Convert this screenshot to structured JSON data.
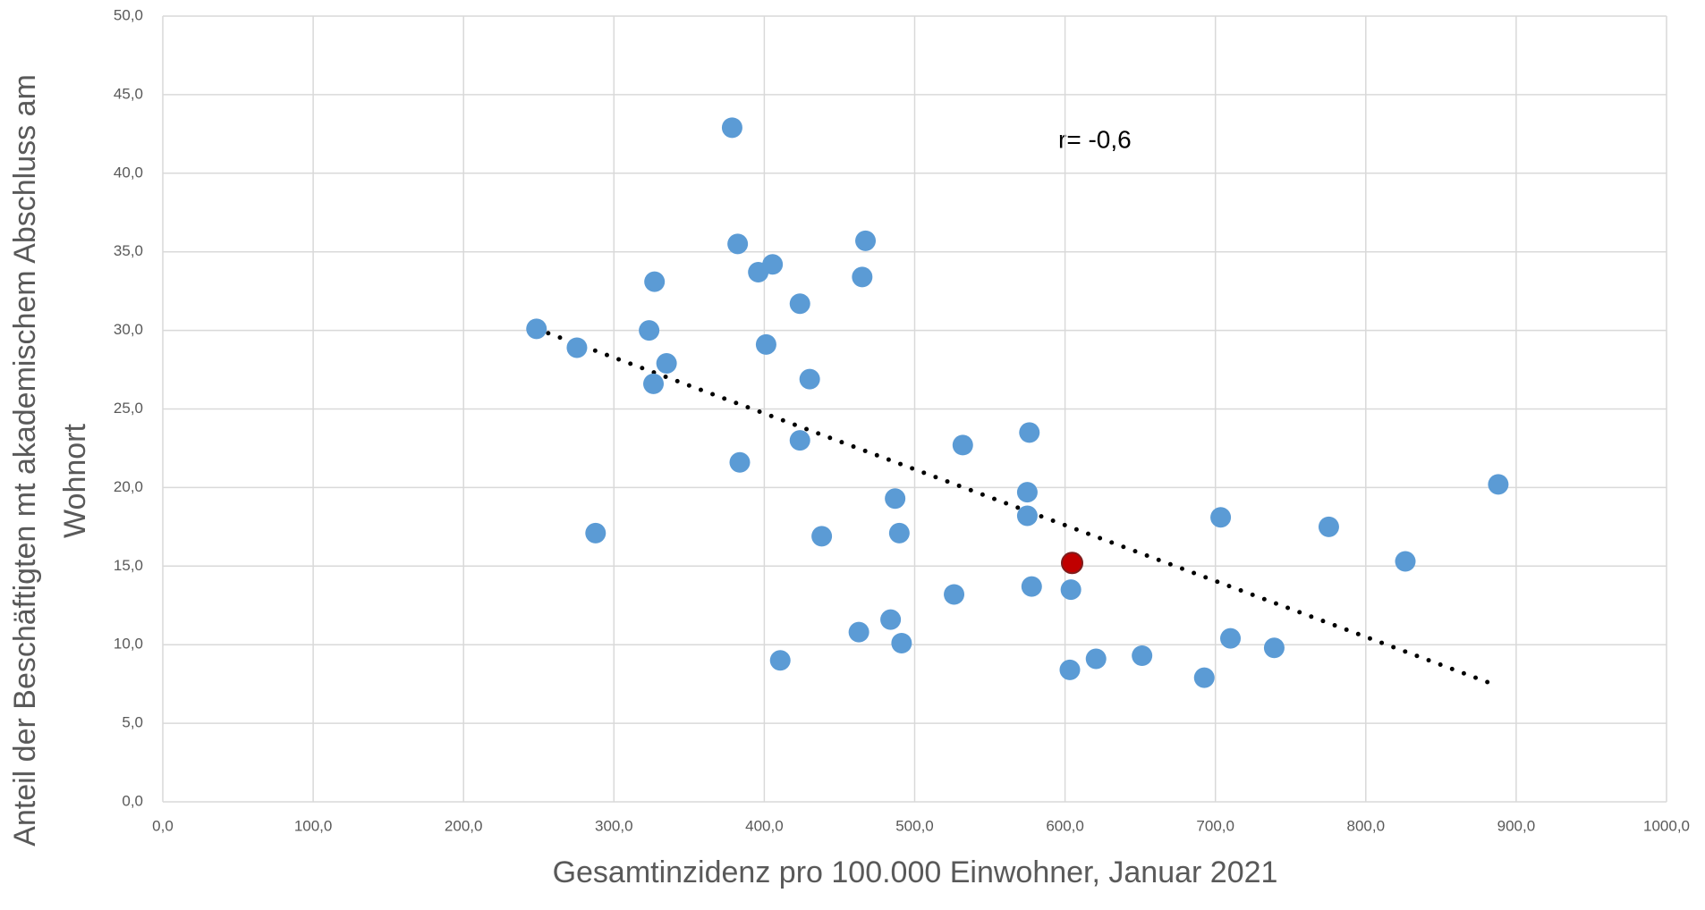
{
  "chart_data": {
    "type": "scatter",
    "xlabel": "Gesamtinzidenz pro 100.000 Einwohner, Januar 2021",
    "ylabel": [
      "Anteil der Beschäftigten mt akademischem Abschluss am",
      "Wohnort"
    ],
    "annotation": "r= -0,6",
    "series": [
      {
        "color": "#5b9bd5",
        "x": [
          248.5,
          275.4,
          287.8,
          323.4,
          327,
          326.3,
          335,
          378.6,
          382.3,
          383.7,
          396,
          405.5,
          401.2,
          410.6,
          423.7,
          423.7,
          430.2,
          438.2,
          462.9,
          465.1,
          467.3,
          484,
          487,
          489.8,
          491.3,
          526.2,
          532,
          574.9,
          574.9,
          576.3,
          577.8,
          603.2,
          603.9,
          620.6,
          651.2,
          692.6,
          703.5,
          710,
          739.1,
          775.4,
          826.3,
          888.1
        ],
        "values": [
          30.1,
          28.9,
          17.1,
          30.0,
          33.1,
          26.6,
          27.9,
          42.9,
          35.5,
          21.6,
          33.7,
          34.2,
          29.1,
          9.0,
          31.7,
          23.0,
          26.9,
          16.9,
          10.8,
          33.4,
          35.7,
          11.6,
          19.3,
          17.1,
          10.1,
          13.2,
          22.7,
          19.7,
          18.2,
          23.5,
          13.7,
          8.4,
          13.5,
          9.1,
          9.3,
          7.9,
          18.1,
          10.4,
          9.8,
          17.5,
          15.3,
          20.2
        ]
      },
      {
        "color": "#c00000",
        "x": [
          604.7
        ],
        "values": [
          15.2
        ]
      }
    ],
    "trendline": {
      "color": "#000000",
      "x": [
        248.5,
        881.5
      ],
      "values": [
        30.1,
        7.6
      ]
    },
    "xlim": [
      0,
      1000
    ],
    "xticks": [
      {
        "value": 0,
        "label": "0,0"
      },
      {
        "value": 100,
        "label": "100,0"
      },
      {
        "value": 200,
        "label": "200,0"
      },
      {
        "value": 300,
        "label": "300,0"
      },
      {
        "value": 400,
        "label": "400,0"
      },
      {
        "value": 500,
        "label": "500,0"
      },
      {
        "value": 600,
        "label": "600,0"
      },
      {
        "value": 700,
        "label": "700,0"
      },
      {
        "value": 800,
        "label": "800,0"
      },
      {
        "value": 900,
        "label": "900,0"
      },
      {
        "value": 1000,
        "label": "1000,0"
      }
    ],
    "ylim": [
      0,
      50
    ],
    "yticks": [
      {
        "value": 0,
        "label": "0,0"
      },
      {
        "value": 5,
        "label": "5,0"
      },
      {
        "value": 10,
        "label": "10,0"
      },
      {
        "value": 15,
        "label": "15,0"
      },
      {
        "value": 20,
        "label": "20,0"
      },
      {
        "value": 25,
        "label": "25,0"
      },
      {
        "value": 30,
        "label": "30,0"
      },
      {
        "value": 35,
        "label": "35,0"
      },
      {
        "value": 40,
        "label": "40,0"
      },
      {
        "value": 45,
        "label": "45,0"
      },
      {
        "value": 50,
        "label": "50,0"
      }
    ],
    "grid": true
  }
}
